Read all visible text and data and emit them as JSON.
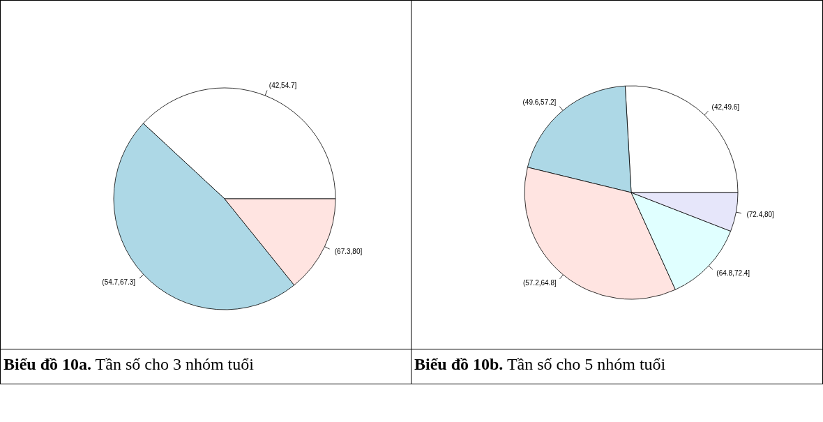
{
  "chart_data": [
    {
      "type": "pie",
      "title": "Biểu đồ 10a.",
      "subtitle": "Tần số cho 3 nhóm tuổi",
      "categories": [
        "(42,54.7]",
        "(54.7,67.3]",
        "(67.3,80]"
      ],
      "values": [
        38.1,
        47.7,
        14.2
      ],
      "colors": [
        "#ffffff",
        "#add8e6",
        "#ffe4e1"
      ]
    },
    {
      "type": "pie",
      "title": "Biểu đồ 10b.",
      "subtitle": "Tần số cho 5 nhóm tuổi",
      "categories": [
        "(42,49.6]",
        "(49.6,57.2]",
        "(57.2,64.8]",
        "(64.8,72.4]",
        "(72.4,80]"
      ],
      "values": [
        25.9,
        20.3,
        35.6,
        12.3,
        5.9
      ],
      "colors": [
        "#ffffff",
        "#add8e6",
        "#ffe4e1",
        "#e0ffff",
        "#e6e6fa"
      ]
    }
  ]
}
